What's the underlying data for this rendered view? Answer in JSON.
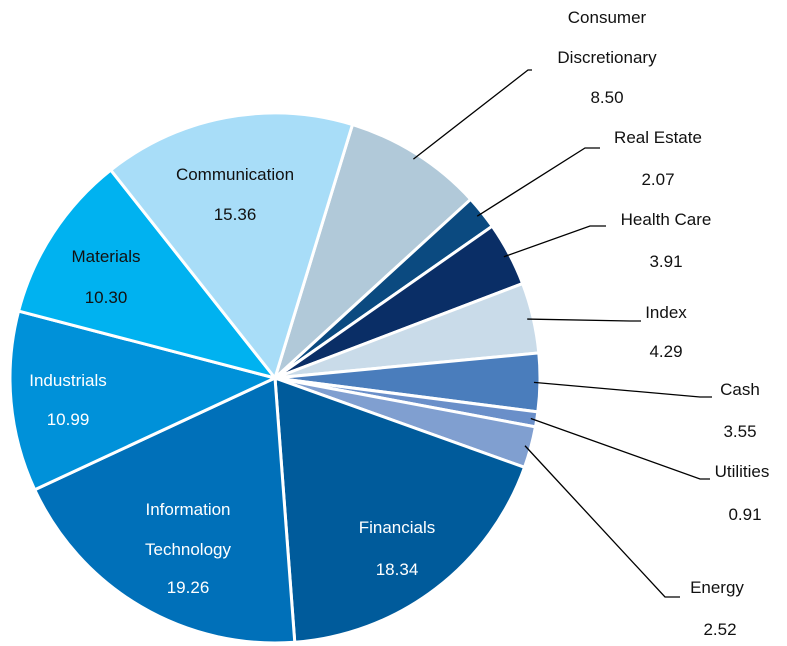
{
  "chart_data": {
    "type": "pie",
    "categories": [
      "Consumer Discretionary",
      "Real Estate",
      "Health Care",
      "Index",
      "Cash",
      "Utilities",
      "Energy",
      "Financials",
      "Information Technology",
      "Industrials",
      "Materials",
      "Communication"
    ],
    "values": [
      8.5,
      2.07,
      3.91,
      4.29,
      3.55,
      0.91,
      2.52,
      18.34,
      19.26,
      10.99,
      10.3,
      15.36
    ],
    "value_labels": [
      "8.50",
      "2.07",
      "3.91",
      "4.29",
      "3.55",
      "0.91",
      "2.52",
      "18.34",
      "19.26",
      "10.99",
      "10.30",
      "15.36"
    ],
    "colors": [
      "#b1c9d9",
      "#0b4a80",
      "#0a2e66",
      "#c9dbe9",
      "#4a7dbc",
      "#6a8fc9",
      "#809fd0",
      "#005b9b",
      "#0070b9",
      "#0091d9",
      "#00b2f0",
      "#a8ddf8"
    ]
  }
}
